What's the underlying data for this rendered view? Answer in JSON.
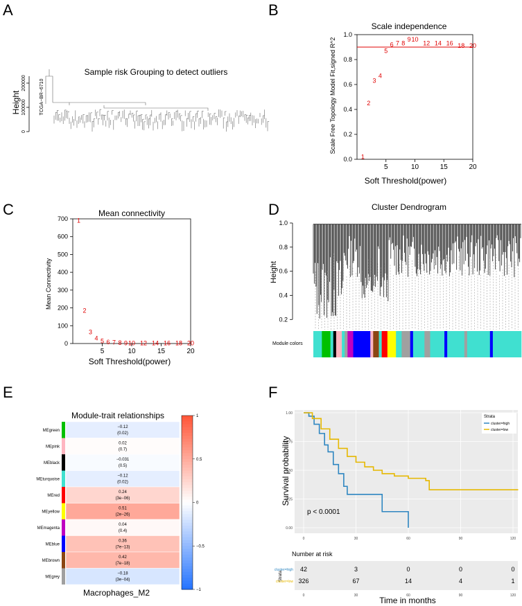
{
  "panel_labels": [
    "A",
    "B",
    "C",
    "D",
    "E",
    "F"
  ],
  "panel_a": {
    "title": "Sample risk Grouping to detect outliers",
    "ylabel": "Height",
    "yticks": [
      "0",
      "100000",
      "200000"
    ],
    "outlier_label": "TCGA−BR−6710"
  },
  "panel_b": {
    "chart_data": {
      "type": "scatter",
      "title": "Scale independence",
      "xlabel": "Soft Threshold(power)",
      "ylabel": "Scale Free Topology Model Fit,signed R^2",
      "xlim": [
        0,
        20
      ],
      "ylim": [
        0,
        1
      ],
      "xticks": [
        "5",
        "10",
        "15",
        "20"
      ],
      "yticks": [
        "0.0",
        "0.2",
        "0.4",
        "0.6",
        "0.8",
        "1.0"
      ],
      "cutoff": 0.9,
      "points": [
        {
          "x": 1,
          "y": 0.02,
          "label": "1"
        },
        {
          "x": 2,
          "y": 0.45,
          "label": "2"
        },
        {
          "x": 3,
          "y": 0.63,
          "label": "3"
        },
        {
          "x": 4,
          "y": 0.67,
          "label": "4"
        },
        {
          "x": 5,
          "y": 0.87,
          "label": "5"
        },
        {
          "x": 6,
          "y": 0.92,
          "label": "6"
        },
        {
          "x": 7,
          "y": 0.93,
          "label": "7"
        },
        {
          "x": 8,
          "y": 0.93,
          "label": "8"
        },
        {
          "x": 9,
          "y": 0.96,
          "label": "9"
        },
        {
          "x": 10,
          "y": 0.96,
          "label": "10"
        },
        {
          "x": 12,
          "y": 0.93,
          "label": "12"
        },
        {
          "x": 14,
          "y": 0.93,
          "label": "14"
        },
        {
          "x": 16,
          "y": 0.93,
          "label": "16"
        },
        {
          "x": 18,
          "y": 0.91,
          "label": "18"
        },
        {
          "x": 20,
          "y": 0.91,
          "label": "20"
        }
      ]
    }
  },
  "panel_c": {
    "chart_data": {
      "type": "scatter",
      "title": "Mean connectivity",
      "xlabel": "Soft Threshold(power)",
      "ylabel": "Mean Connectivity",
      "xlim": [
        0,
        20
      ],
      "ylim": [
        0,
        700
      ],
      "xticks": [
        "5",
        "10",
        "15",
        "20"
      ],
      "yticks": [
        "0",
        "100",
        "200",
        "300",
        "400",
        "500",
        "600",
        "700"
      ],
      "points": [
        {
          "x": 1,
          "y": 690,
          "label": "1"
        },
        {
          "x": 2,
          "y": 185,
          "label": "2"
        },
        {
          "x": 3,
          "y": 65,
          "label": "3"
        },
        {
          "x": 4,
          "y": 30,
          "label": "4"
        },
        {
          "x": 5,
          "y": 14,
          "label": "5"
        },
        {
          "x": 6,
          "y": 8,
          "label": "6"
        },
        {
          "x": 7,
          "y": 5,
          "label": "7"
        },
        {
          "x": 8,
          "y": 3,
          "label": "8"
        },
        {
          "x": 9,
          "y": 2,
          "label": "9"
        },
        {
          "x": 10,
          "y": 2,
          "label": "10"
        },
        {
          "x": 12,
          "y": 1,
          "label": "12"
        },
        {
          "x": 14,
          "y": 1,
          "label": "14"
        },
        {
          "x": 16,
          "y": 1,
          "label": "16"
        },
        {
          "x": 18,
          "y": 1,
          "label": "18"
        },
        {
          "x": 20,
          "y": 1,
          "label": "20"
        }
      ]
    }
  },
  "panel_d": {
    "title": "Cluster Dendrogram",
    "ylabel": "Height",
    "yticks": [
      "0.2",
      "0.4",
      "0.6",
      "0.8",
      "1.0"
    ],
    "module_label": "Module colors",
    "module_colors": [
      {
        "color": "#40e0d0",
        "w": 3
      },
      {
        "color": "#00c000",
        "w": 3
      },
      {
        "color": "#40e0d0",
        "w": 1
      },
      {
        "color": "#000000",
        "w": 1
      },
      {
        "color": "#ffb6c1",
        "w": 2
      },
      {
        "color": "#40e0d0",
        "w": 1
      },
      {
        "color": "#a0a0a0",
        "w": 1
      },
      {
        "color": "#c000c0",
        "w": 2
      },
      {
        "color": "#0000ff",
        "w": 6
      },
      {
        "color": "#ffb6c1",
        "w": 1
      },
      {
        "color": "#8b4513",
        "w": 2
      },
      {
        "color": "#40e0d0",
        "w": 1
      },
      {
        "color": "#ff0000",
        "w": 2
      },
      {
        "color": "#ffff00",
        "w": 3
      },
      {
        "color": "#40e0d0",
        "w": 2
      },
      {
        "color": "#a0a0a0",
        "w": 3
      },
      {
        "color": "#0000ff",
        "w": 1
      },
      {
        "color": "#40e0d0",
        "w": 4
      },
      {
        "color": "#a0a0a0",
        "w": 2
      },
      {
        "color": "#40e0d0",
        "w": 5
      },
      {
        "color": "#0000ff",
        "w": 1
      },
      {
        "color": "#40e0d0",
        "w": 6
      },
      {
        "color": "#a0a0a0",
        "w": 1
      },
      {
        "color": "#40e0d0",
        "w": 8
      },
      {
        "color": "#0000ff",
        "w": 1
      },
      {
        "color": "#40e0d0",
        "w": 10
      }
    ]
  },
  "panel_e": {
    "title": "Module-trait relationships",
    "xlabel": "Macrophages_M2",
    "scale_ticks": [
      "1",
      "0.5",
      "0",
      "−0.5",
      "−1"
    ],
    "rows": [
      {
        "name": "MEgreen",
        "r": "−0.12",
        "p": "(0.02)",
        "value": -0.12,
        "color": "#00c000"
      },
      {
        "name": "MEpink",
        "r": "0.02",
        "p": "(0.7)",
        "value": 0.02,
        "color": "#ffb6c1"
      },
      {
        "name": "MEblack",
        "r": "−0.031",
        "p": "(0.5)",
        "value": -0.031,
        "color": "#000000"
      },
      {
        "name": "MEturquoise",
        "r": "−0.12",
        "p": "(0.02)",
        "value": -0.12,
        "color": "#40e0d0"
      },
      {
        "name": "MEred",
        "r": "0.24",
        "p": "(3e−06)",
        "value": 0.24,
        "color": "#ff0000"
      },
      {
        "name": "MEyellow",
        "r": "0.51",
        "p": "(2e−26)",
        "value": 0.51,
        "color": "#ffff00"
      },
      {
        "name": "MEmagenta",
        "r": "0.04",
        "p": "(0.4)",
        "value": 0.04,
        "color": "#c000c0"
      },
      {
        "name": "MEblue",
        "r": "0.36",
        "p": "(7e−13)",
        "value": 0.36,
        "color": "#0000ff"
      },
      {
        "name": "MEbrown",
        "r": "0.42",
        "p": "(7e−18)",
        "value": 0.42,
        "color": "#8b4513"
      },
      {
        "name": "MEgrey",
        "r": "−0.18",
        "p": "(3e−04)",
        "value": -0.18,
        "color": "#a0a0a0"
      }
    ]
  },
  "panel_f": {
    "chart_data": {
      "type": "line",
      "ylabel": "Survival probability",
      "xlabel": "Time in months",
      "xlim": [
        0,
        120
      ],
      "ylim": [
        0,
        1
      ],
      "xticks": [
        "0",
        "30",
        "60",
        "90",
        "120"
      ],
      "yticks": [
        "0.00",
        "0.25",
        "0.50",
        "0.75",
        "1.00"
      ],
      "pvalue": "p < 0.0001",
      "legend_title": "Strata",
      "series": [
        {
          "name": "cluster=high",
          "color": "#2e86c1",
          "points": [
            [
              0,
              1.0
            ],
            [
              3,
              0.97
            ],
            [
              6,
              0.9
            ],
            [
              9,
              0.82
            ],
            [
              12,
              0.72
            ],
            [
              14,
              0.66
            ],
            [
              17,
              0.55
            ],
            [
              20,
              0.47
            ],
            [
              23,
              0.36
            ],
            [
              25,
              0.29
            ],
            [
              45,
              0.29
            ],
            [
              45,
              0.14
            ],
            [
              60,
              0.14
            ],
            [
              60,
              0.0
            ]
          ]
        },
        {
          "name": "cluster=low",
          "color": "#e6b800",
          "points": [
            [
              0,
              1.0
            ],
            [
              5,
              0.95
            ],
            [
              10,
              0.86
            ],
            [
              15,
              0.77
            ],
            [
              20,
              0.69
            ],
            [
              25,
              0.62
            ],
            [
              30,
              0.57
            ],
            [
              35,
              0.53
            ],
            [
              40,
              0.5
            ],
            [
              45,
              0.47
            ],
            [
              52,
              0.45
            ],
            [
              60,
              0.43
            ],
            [
              70,
              0.41
            ],
            [
              72,
              0.33
            ],
            [
              90,
              0.33
            ],
            [
              123,
              0.33
            ]
          ]
        }
      ],
      "risk_table": {
        "title": "Number at risk",
        "strata_label": "Strata",
        "times": [
          "0",
          "30",
          "60",
          "90",
          "120"
        ],
        "rows": [
          {
            "name": "cluster=high",
            "color": "#2e86c1",
            "counts": [
              "42",
              "3",
              "0",
              "0",
              "0"
            ]
          },
          {
            "name": "cluster=low",
            "color": "#e6b800",
            "counts": [
              "326",
              "67",
              "14",
              "4",
              "1"
            ]
          }
        ]
      }
    }
  }
}
